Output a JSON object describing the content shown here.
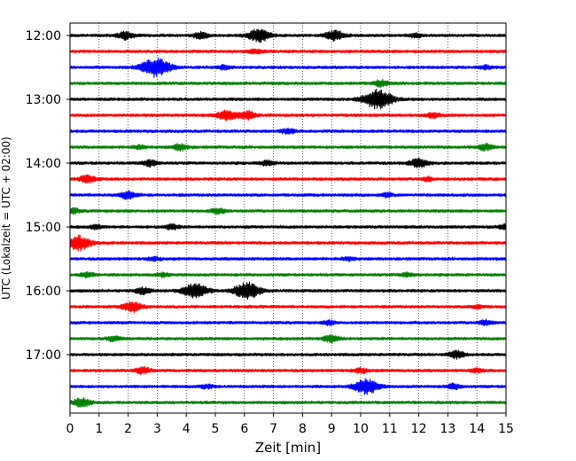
{
  "chart_data": {
    "type": "line",
    "title": "",
    "xlabel": "Zeit  [min]",
    "ylabel": "UTC (Lokalzeit = UTC + 02:00)",
    "xlim": [
      0,
      15
    ],
    "x_ticks": [
      0,
      1,
      2,
      3,
      4,
      5,
      6,
      7,
      8,
      9,
      10,
      11,
      12,
      13,
      14,
      15
    ],
    "x_tick_labels": [
      "0",
      "1",
      "2",
      "3",
      "4",
      "5",
      "6",
      "7",
      "8",
      "9",
      "10",
      "11",
      "12",
      "13",
      "14",
      "15"
    ],
    "y_tick_labels": [
      "12:00",
      "13:00",
      "14:00",
      "15:00",
      "16:00",
      "17:00"
    ],
    "y_tick_trace_index": [
      0,
      4,
      8,
      12,
      16,
      20
    ],
    "grid": "vertical dotted at each minute",
    "trace_colors": [
      "#000000",
      "#ff0000",
      "#0000ff",
      "#008000"
    ],
    "traces": [
      {
        "start": "12:00",
        "events": [
          [
            1.9,
            0.6
          ],
          [
            4.5,
            0.5
          ],
          [
            6.5,
            1.0
          ],
          [
            9.1,
            0.8
          ],
          [
            11.9,
            0.3
          ]
        ]
      },
      {
        "start": "12:15",
        "events": [
          [
            6.4,
            0.4
          ]
        ]
      },
      {
        "start": "12:30",
        "events": [
          [
            2.95,
            1.5
          ],
          [
            5.3,
            0.3
          ],
          [
            14.3,
            0.3
          ]
        ]
      },
      {
        "start": "12:45",
        "events": [
          [
            10.7,
            0.5
          ]
        ]
      },
      {
        "start": "13:00",
        "events": [
          [
            10.6,
            1.6
          ]
        ]
      },
      {
        "start": "13:15",
        "events": [
          [
            5.4,
            0.8
          ],
          [
            6.1,
            0.6
          ],
          [
            12.5,
            0.4
          ]
        ]
      },
      {
        "start": "13:30",
        "events": [
          [
            7.5,
            0.4
          ]
        ]
      },
      {
        "start": "13:45",
        "events": [
          [
            2.4,
            0.3
          ],
          [
            3.8,
            0.5
          ],
          [
            14.3,
            0.5
          ]
        ]
      },
      {
        "start": "14:00",
        "events": [
          [
            2.75,
            0.5
          ],
          [
            6.8,
            0.4
          ],
          [
            12.0,
            0.7
          ]
        ]
      },
      {
        "start": "14:15",
        "events": [
          [
            0.6,
            0.6
          ],
          [
            12.3,
            0.3
          ]
        ]
      },
      {
        "start": "14:30",
        "events": [
          [
            2.0,
            0.6
          ],
          [
            10.9,
            0.3
          ]
        ]
      },
      {
        "start": "14:45",
        "events": [
          [
            0.1,
            0.4
          ],
          [
            5.1,
            0.4
          ]
        ]
      },
      {
        "start": "15:00",
        "events": [
          [
            0.9,
            0.3
          ],
          [
            3.5,
            0.4
          ],
          [
            15.0,
            0.4
          ]
        ]
      },
      {
        "start": "15:15",
        "events": [
          [
            0.3,
            1.2
          ]
        ]
      },
      {
        "start": "15:30",
        "events": [
          [
            2.9,
            0.3
          ],
          [
            9.6,
            0.3
          ]
        ]
      },
      {
        "start": "15:45",
        "events": [
          [
            0.6,
            0.4
          ],
          [
            3.2,
            0.3
          ],
          [
            11.6,
            0.3
          ]
        ]
      },
      {
        "start": "16:00",
        "events": [
          [
            2.5,
            0.5
          ],
          [
            4.3,
            1.2
          ],
          [
            6.1,
            1.3
          ]
        ]
      },
      {
        "start": "16:15",
        "events": [
          [
            2.15,
            0.8
          ],
          [
            14.0,
            0.3
          ]
        ]
      },
      {
        "start": "16:30",
        "events": [
          [
            8.9,
            0.3
          ],
          [
            14.3,
            0.4
          ]
        ]
      },
      {
        "start": "16:45",
        "events": [
          [
            1.5,
            0.4
          ],
          [
            9.0,
            0.6
          ]
        ]
      },
      {
        "start": "17:00",
        "events": [
          [
            13.3,
            0.6
          ]
        ]
      },
      {
        "start": "17:15",
        "events": [
          [
            2.5,
            0.5
          ],
          [
            10.0,
            0.4
          ],
          [
            14.0,
            0.3
          ]
        ]
      },
      {
        "start": "17:30",
        "events": [
          [
            4.7,
            0.3
          ],
          [
            10.2,
            1.2
          ],
          [
            13.2,
            0.4
          ]
        ]
      },
      {
        "start": "17:45",
        "events": [
          [
            0.4,
            0.7
          ]
        ]
      }
    ]
  }
}
